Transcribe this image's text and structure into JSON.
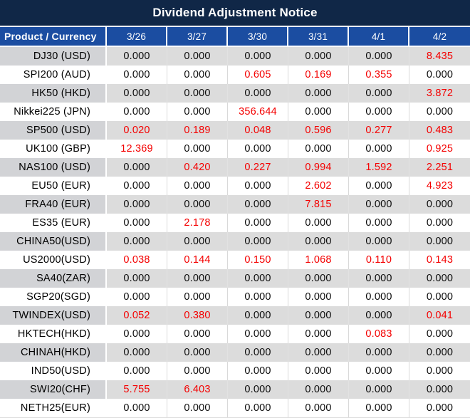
{
  "title": "Dividend Adjustment Notice",
  "colors": {
    "title_bg": "#102747",
    "header_bg": "#1b4da1",
    "row_alt_bg": "#dcdcdc",
    "row_alt_label_bg": "#d2d3d6",
    "value_red": "#f40000",
    "value_black": "#0c0c0c"
  },
  "table": {
    "columns": [
      "Product / Currency",
      "3/26",
      "3/27",
      "3/30",
      "3/31",
      "4/1",
      "4/2"
    ],
    "rows": [
      {
        "product": "DJ30 (USD)",
        "values": [
          "0.000",
          "0.000",
          "0.000",
          "0.000",
          "0.000",
          "8.435"
        ],
        "red": [
          0,
          0,
          0,
          0,
          0,
          1
        ]
      },
      {
        "product": "SPI200 (AUD)",
        "values": [
          "0.000",
          "0.000",
          "0.605",
          "0.169",
          "0.355",
          "0.000"
        ],
        "red": [
          0,
          0,
          1,
          1,
          1,
          0
        ]
      },
      {
        "product": "HK50 (HKD)",
        "values": [
          "0.000",
          "0.000",
          "0.000",
          "0.000",
          "0.000",
          "3.872"
        ],
        "red": [
          0,
          0,
          0,
          0,
          0,
          1
        ]
      },
      {
        "product": "Nikkei225 (JPN)",
        "values": [
          "0.000",
          "0.000",
          "356.644",
          "0.000",
          "0.000",
          "0.000"
        ],
        "red": [
          0,
          0,
          1,
          0,
          0,
          0
        ]
      },
      {
        "product": "SP500 (USD)",
        "values": [
          "0.020",
          "0.189",
          "0.048",
          "0.596",
          "0.277",
          "0.483"
        ],
        "red": [
          1,
          1,
          1,
          1,
          1,
          1
        ]
      },
      {
        "product": "UK100 (GBP)",
        "values": [
          "12.369",
          "0.000",
          "0.000",
          "0.000",
          "0.000",
          "0.925"
        ],
        "red": [
          1,
          0,
          0,
          0,
          0,
          1
        ]
      },
      {
        "product": "NAS100 (USD)",
        "values": [
          "0.000",
          "0.420",
          "0.227",
          "0.994",
          "1.592",
          "2.251"
        ],
        "red": [
          0,
          1,
          1,
          1,
          1,
          1
        ]
      },
      {
        "product": "EU50 (EUR)",
        "values": [
          "0.000",
          "0.000",
          "0.000",
          "2.602",
          "0.000",
          "4.923"
        ],
        "red": [
          0,
          0,
          0,
          1,
          0,
          1
        ]
      },
      {
        "product": "FRA40 (EUR)",
        "values": [
          "0.000",
          "0.000",
          "0.000",
          "7.815",
          "0.000",
          "0.000"
        ],
        "red": [
          0,
          0,
          0,
          1,
          0,
          0
        ]
      },
      {
        "product": "ES35 (EUR)",
        "values": [
          "0.000",
          "2.178",
          "0.000",
          "0.000",
          "0.000",
          "0.000"
        ],
        "red": [
          0,
          1,
          0,
          0,
          0,
          0
        ]
      },
      {
        "product": "CHINA50(USD)",
        "values": [
          "0.000",
          "0.000",
          "0.000",
          "0.000",
          "0.000",
          "0.000"
        ],
        "red": [
          0,
          0,
          0,
          0,
          0,
          0
        ]
      },
      {
        "product": "US2000(USD)",
        "values": [
          "0.038",
          "0.144",
          "0.150",
          "1.068",
          "0.110",
          "0.143"
        ],
        "red": [
          1,
          1,
          1,
          1,
          1,
          1
        ]
      },
      {
        "product": "SA40(ZAR)",
        "values": [
          "0.000",
          "0.000",
          "0.000",
          "0.000",
          "0.000",
          "0.000"
        ],
        "red": [
          0,
          0,
          0,
          0,
          0,
          0
        ]
      },
      {
        "product": "SGP20(SGD)",
        "values": [
          "0.000",
          "0.000",
          "0.000",
          "0.000",
          "0.000",
          "0.000"
        ],
        "red": [
          0,
          0,
          0,
          0,
          0,
          0
        ]
      },
      {
        "product": "TWINDEX(USD)",
        "values": [
          "0.052",
          "0.380",
          "0.000",
          "0.000",
          "0.000",
          "0.041"
        ],
        "red": [
          1,
          1,
          0,
          0,
          0,
          1
        ]
      },
      {
        "product": "HKTECH(HKD)",
        "values": [
          "0.000",
          "0.000",
          "0.000",
          "0.000",
          "0.083",
          "0.000"
        ],
        "red": [
          0,
          0,
          0,
          0,
          1,
          0
        ]
      },
      {
        "product": "CHINAH(HKD)",
        "values": [
          "0.000",
          "0.000",
          "0.000",
          "0.000",
          "0.000",
          "0.000"
        ],
        "red": [
          0,
          0,
          0,
          0,
          0,
          0
        ]
      },
      {
        "product": "IND50(USD)",
        "values": [
          "0.000",
          "0.000",
          "0.000",
          "0.000",
          "0.000",
          "0.000"
        ],
        "red": [
          0,
          0,
          0,
          0,
          0,
          0
        ]
      },
      {
        "product": "SWI20(CHF)",
        "values": [
          "5.755",
          "6.403",
          "0.000",
          "0.000",
          "0.000",
          "0.000"
        ],
        "red": [
          1,
          1,
          0,
          0,
          0,
          0
        ]
      },
      {
        "product": "NETH25(EUR)",
        "values": [
          "0.000",
          "0.000",
          "0.000",
          "0.000",
          "0.000",
          "0.000"
        ],
        "red": [
          0,
          0,
          0,
          0,
          0,
          0
        ]
      }
    ]
  }
}
